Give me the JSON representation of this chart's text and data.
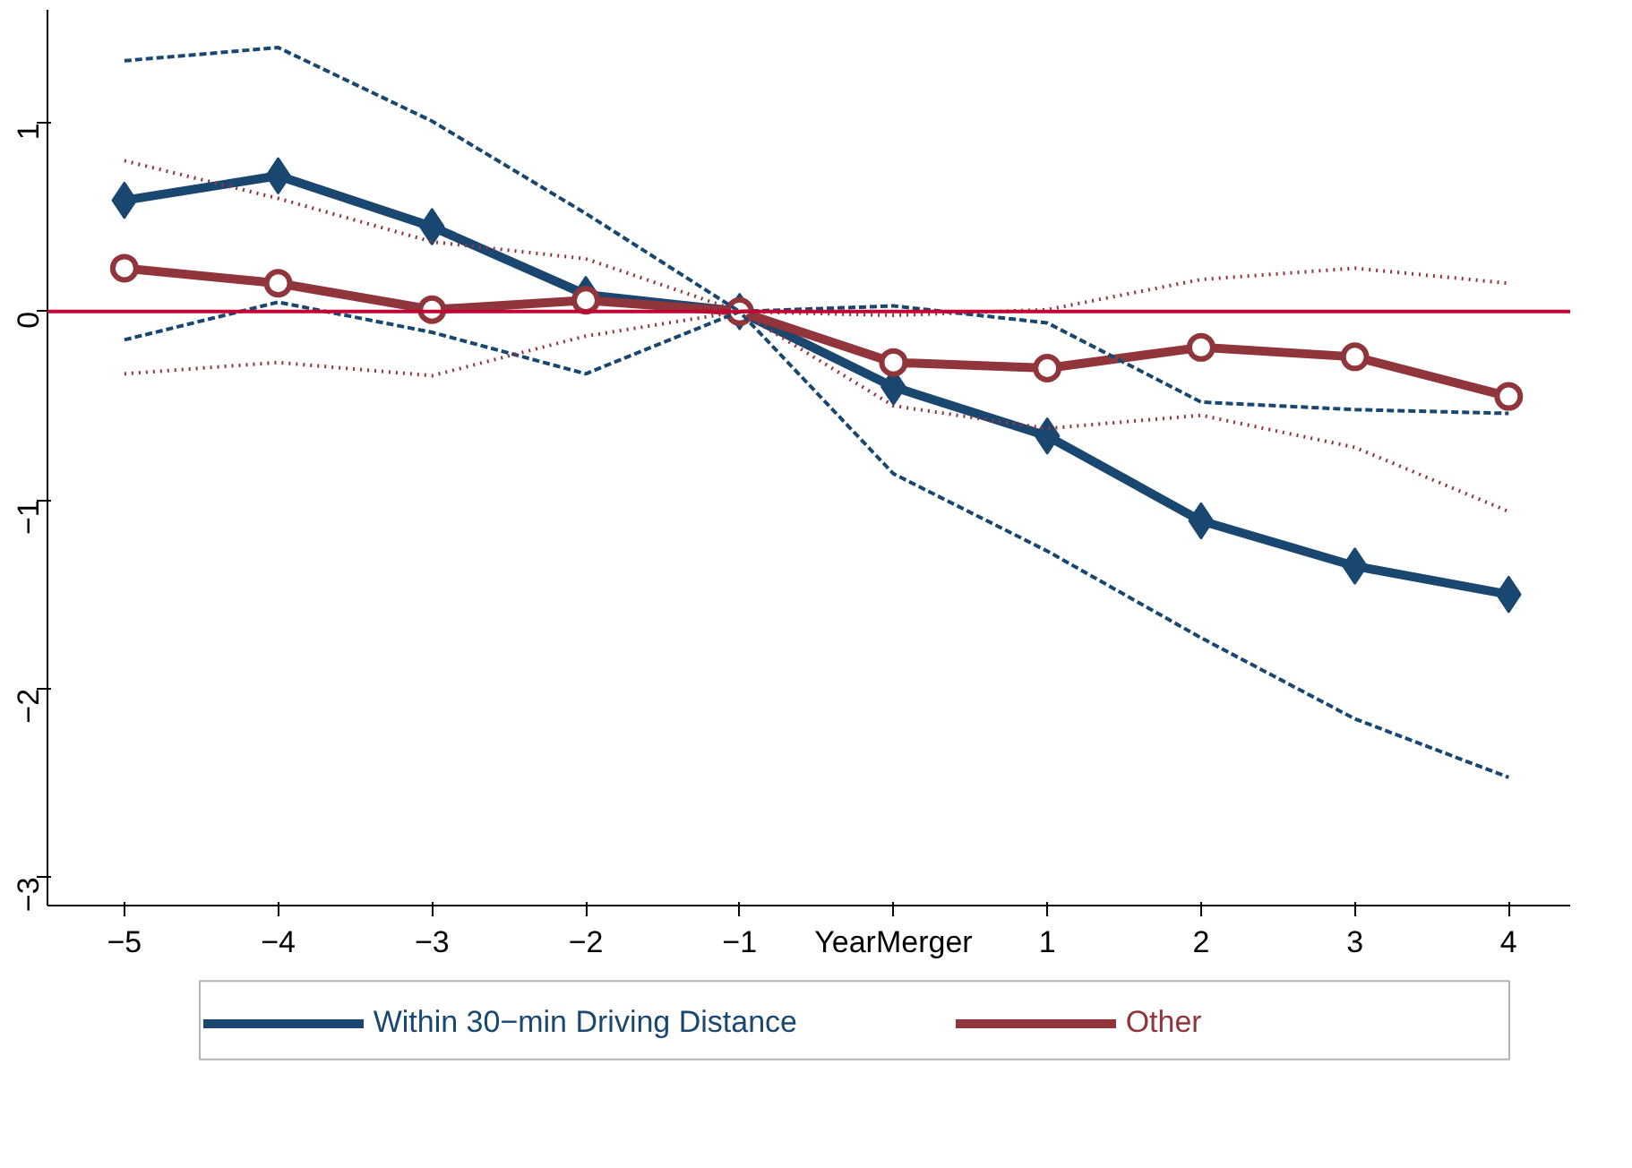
{
  "chart_data": {
    "type": "line",
    "x": [
      -5,
      -4,
      -3,
      -2,
      -1,
      0,
      1,
      2,
      3,
      4
    ],
    "series": [
      {
        "name": "Within 30−min Driving Distance",
        "color": "#1a476f",
        "line_style": "solid",
        "marker": "diamond",
        "values": [
          0.59,
          0.72,
          0.45,
          0.09,
          0,
          -0.4,
          -0.66,
          -1.11,
          -1.35,
          -1.5
        ]
      },
      {
        "name": "Other",
        "color": "#90353b",
        "line_style": "solid",
        "marker": "circle",
        "values": [
          0.23,
          0.15,
          0.01,
          0.06,
          0,
          -0.27,
          -0.3,
          -0.19,
          -0.24,
          -0.45
        ]
      },
      {
        "color": "#1a476f",
        "line_style": "dashed",
        "marker": "none",
        "values": [
          1.33,
          1.4,
          1.01,
          0.52,
          0,
          0.03,
          -0.06,
          -0.48,
          -0.52,
          -0.54
        ]
      },
      {
        "color": "#1a476f",
        "line_style": "dashed",
        "marker": "none",
        "values": [
          -0.15,
          0.05,
          -0.11,
          -0.33,
          0,
          -0.86,
          -1.27,
          -1.73,
          -2.16,
          -2.47
        ]
      },
      {
        "color": "#90353b",
        "line_style": "dotted",
        "marker": "none",
        "values": [
          0.8,
          0.6,
          0.37,
          0.28,
          0,
          -0.02,
          0.01,
          0.17,
          0.23,
          0.15
        ]
      },
      {
        "color": "#90353b",
        "line_style": "dotted",
        "marker": "none",
        "values": [
          -0.33,
          -0.27,
          -0.34,
          -0.13,
          0,
          -0.5,
          -0.62,
          -0.55,
          -0.72,
          -1.06
        ]
      }
    ],
    "xlim": [
      -5.5,
      4.4
    ],
    "xticks": [
      -5,
      -4,
      -3,
      -2,
      -1,
      {
        "value": 0,
        "label": "YearMerger"
      },
      1,
      2,
      3,
      4
    ],
    "ylim": [
      -3.15,
      1.6
    ],
    "yticks": [
      {
        "value": -3,
        "label": "−3"
      },
      {
        "value": -2,
        "label": "−2"
      },
      {
        "value": -1,
        "label": "−1"
      },
      0,
      1
    ],
    "ref_lines": [
      {
        "axis": "y",
        "value": 0,
        "color": "#c10534",
        "line_style": "solid"
      }
    ],
    "grid": false,
    "legend": "bottom"
  }
}
